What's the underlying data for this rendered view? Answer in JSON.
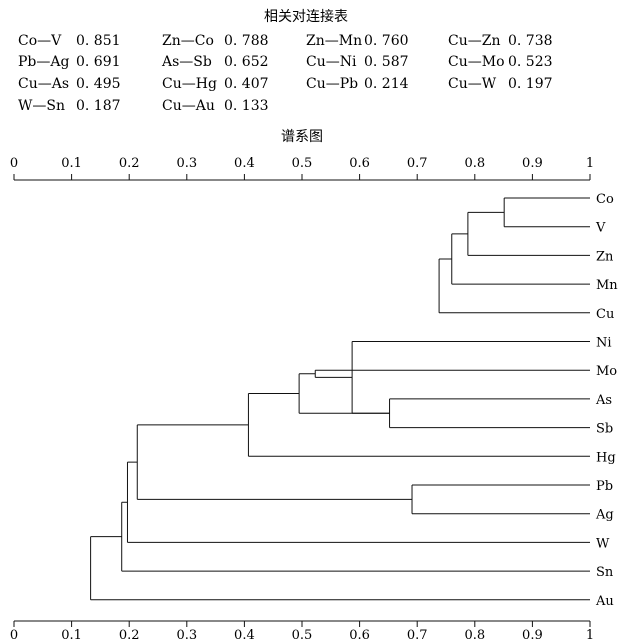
{
  "table": {
    "title": "相关对连接表",
    "rows": [
      [
        {
          "pair": "Co—V",
          "value": "0. 851"
        },
        {
          "pair": "Zn—Co",
          "value": "0. 788"
        },
        {
          "pair": "Zn—Mn",
          "value": "0. 760"
        },
        {
          "pair": "Cu—Zn",
          "value": "0. 738"
        }
      ],
      [
        {
          "pair": "Pb—Ag",
          "value": "0. 691"
        },
        {
          "pair": "As—Sb",
          "value": "0. 652"
        },
        {
          "pair": "Cu—Ni",
          "value": "0. 587"
        },
        {
          "pair": "Cu—Mo",
          "value": "0. 523"
        }
      ],
      [
        {
          "pair": "Cu—As",
          "value": "0. 495"
        },
        {
          "pair": "Cu—Hg",
          "value": "0. 407"
        },
        {
          "pair": "Cu—Pb",
          "value": "0. 214"
        },
        {
          "pair": "Cu—W",
          "value": "0. 197"
        }
      ],
      [
        {
          "pair": "W—Sn",
          "value": "0. 187"
        },
        {
          "pair": "Cu—Au",
          "value": "0. 133"
        }
      ]
    ]
  },
  "dendrogram": {
    "title": "谱系图",
    "ticks": [
      "0",
      "0.1",
      "0.2",
      "0.3",
      "0.4",
      "0.5",
      "0.6",
      "0.7",
      "0.8",
      "0.9",
      "1"
    ],
    "tick_values": [
      0,
      0.1,
      0.2,
      0.3,
      0.4,
      0.5,
      0.6,
      0.7,
      0.8,
      0.9,
      1
    ],
    "leaves": [
      "Co",
      "V",
      "Zn",
      "Mn",
      "Cu",
      "Ni",
      "Mo",
      "As",
      "Sb",
      "Hg",
      "Pb",
      "Ag",
      "W",
      "Sn",
      "Au"
    ],
    "merges": [
      {
        "left": "Co",
        "right": "V",
        "similarity": 0.851
      },
      {
        "left": "Co-V",
        "right": "Zn",
        "similarity": 0.788
      },
      {
        "left": "Co-V-Zn",
        "right": "Mn",
        "similarity": 0.76
      },
      {
        "left": "Co-V-Zn-Mn",
        "right": "Cu",
        "similarity": 0.738
      },
      {
        "left": "Pb",
        "right": "Ag",
        "similarity": 0.691
      },
      {
        "left": "As",
        "right": "Sb",
        "similarity": 0.652
      },
      {
        "left": "Co-V-Zn-Mn-Cu",
        "right": "Ni",
        "similarity": 0.587
      },
      {
        "left": "Co-V-Zn-Mn-Cu-Ni",
        "right": "Mo",
        "similarity": 0.523
      },
      {
        "left": "Co-V-Zn-Mn-Cu-Ni-Mo",
        "right": "As-Sb",
        "similarity": 0.495
      },
      {
        "left": "Co..Sb",
        "right": "Hg",
        "similarity": 0.407
      },
      {
        "left": "Co..Hg",
        "right": "Pb-Ag",
        "similarity": 0.214
      },
      {
        "left": "Co..Ag",
        "right": "W",
        "similarity": 0.197
      },
      {
        "left": "Co..W",
        "right": "Sn",
        "similarity": 0.187
      },
      {
        "left": "Co..Sn",
        "right": "Au",
        "similarity": 0.133
      }
    ]
  }
}
